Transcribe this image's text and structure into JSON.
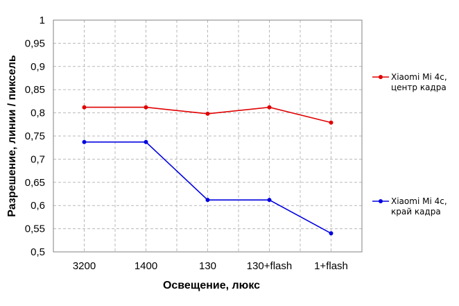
{
  "chart_data": {
    "type": "line",
    "categories": [
      "3200",
      "1400",
      "130",
      "130+flash",
      "1+flash"
    ],
    "series": [
      {
        "name_lines": [
          "Xiaomi Mi 4c,",
          "центр кадра"
        ],
        "color": "#e00000",
        "values": [
          0.812,
          0.812,
          0.798,
          0.812,
          0.779
        ]
      },
      {
        "name_lines": [
          "Xiaomi Mi 4c,",
          "край кадра"
        ],
        "color": "#0000e0",
        "values": [
          0.737,
          0.737,
          0.612,
          0.612,
          0.54
        ]
      }
    ],
    "y_ticks": [
      "1",
      "0,95",
      "0,9",
      "0,85",
      "0,8",
      "0,75",
      "0,7",
      "0,65",
      "0,6",
      "0,55",
      "0,5"
    ],
    "ylim": [
      0.5,
      1.0
    ],
    "xlabel": "Освещение,  люкс",
    "ylabel": "Разрешение,  линии / пиксель",
    "grid": true,
    "legend": "right"
  }
}
